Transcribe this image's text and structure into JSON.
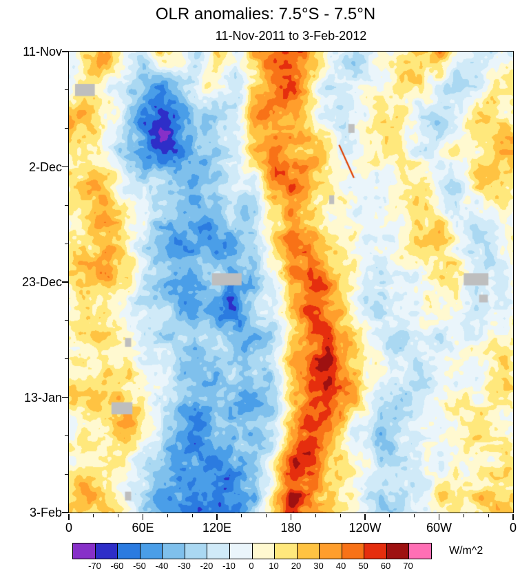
{
  "title": "OLR anomalies: 7.5°S - 7.5°N",
  "subtitle": "11-Nov-2011 to 3-Feb-2012",
  "colorbar": {
    "units": "W/m^2",
    "levels": [
      -70,
      -60,
      -50,
      -40,
      -30,
      -20,
      -10,
      0,
      10,
      20,
      30,
      40,
      50,
      60,
      70
    ],
    "colors": [
      "#8730C8",
      "#2E2EC8",
      "#2B7BE0",
      "#4A9EE8",
      "#7FC0EC",
      "#AAD8F2",
      "#D0EAF8",
      "#EAF5FB",
      "#FFF9D0",
      "#FFE87C",
      "#FFC342",
      "#FF9E2C",
      "#F87217",
      "#E52E0E",
      "#9E1111",
      "#FF6FB5"
    ]
  },
  "chart_data": {
    "type": "heatmap",
    "title": "OLR anomalies: 7.5°S - 7.5°N",
    "subtitle": "11-Nov-2011 to 3-Feb-2012",
    "xlabel": "",
    "ylabel": "",
    "value_units": "W/m^2",
    "lon_range": [
      0,
      360
    ],
    "day_range": [
      0,
      84
    ],
    "x_axis": {
      "ticks": [
        {
          "lon": 0,
          "label": "0"
        },
        {
          "lon": 60,
          "label": "60E"
        },
        {
          "lon": 120,
          "label": "120E"
        },
        {
          "lon": 180,
          "label": "180"
        },
        {
          "lon": 240,
          "label": "120W"
        },
        {
          "lon": 300,
          "label": "60W"
        },
        {
          "lon": 360,
          "label": "0"
        }
      ],
      "minor_lons": [
        20,
        40,
        80,
        100,
        140,
        160,
        200,
        220,
        260,
        280,
        320,
        340
      ]
    },
    "y_axis": {
      "ticks": [
        {
          "day": 0,
          "label": "11-Nov"
        },
        {
          "day": 21,
          "label": "2-Dec"
        },
        {
          "day": 42,
          "label": "23-Dec"
        },
        {
          "day": 63,
          "label": "13-Jan"
        },
        {
          "day": 84,
          "label": "3-Feb"
        }
      ],
      "minor_days": [
        7,
        14,
        28,
        35,
        49,
        56,
        70,
        77
      ]
    },
    "grid": {
      "lons": [
        0,
        15,
        30,
        45,
        60,
        75,
        90,
        105,
        120,
        135,
        150,
        165,
        180,
        195,
        210,
        225,
        240,
        255,
        270,
        285,
        300,
        315,
        330,
        345,
        360
      ],
      "days": [
        0,
        6,
        12,
        18,
        24,
        30,
        36,
        42,
        48,
        54,
        60,
        66,
        72,
        78,
        84
      ],
      "values": [
        [
          -8,
          12,
          28,
          8,
          -12,
          26,
          18,
          -8,
          14,
          -12,
          20,
          40,
          52,
          20,
          -6,
          -14,
          -18,
          -8,
          6,
          18,
          24,
          -18,
          -26,
          -10,
          -8
        ],
        [
          10,
          22,
          15,
          -10,
          -35,
          -52,
          -30,
          -15,
          12,
          -18,
          15,
          35,
          45,
          15,
          -10,
          -18,
          -10,
          4,
          12,
          8,
          -12,
          -22,
          -15,
          10,
          10
        ],
        [
          18,
          15,
          -5,
          -22,
          -50,
          -64,
          -42,
          -20,
          -25,
          -15,
          25,
          30,
          22,
          18,
          -5,
          -12,
          -6,
          8,
          15,
          -5,
          -18,
          -12,
          5,
          15,
          18
        ],
        [
          25,
          10,
          -10,
          -25,
          -40,
          -58,
          -52,
          -30,
          -35,
          -28,
          18,
          35,
          28,
          22,
          8,
          -8,
          4,
          10,
          5,
          -10,
          -8,
          6,
          12,
          20,
          25
        ],
        [
          20,
          25,
          15,
          -5,
          -20,
          -35,
          -48,
          -42,
          -30,
          -20,
          -25,
          25,
          35,
          18,
          5,
          -5,
          -10,
          -6,
          8,
          12,
          -6,
          -15,
          8,
          18,
          20
        ],
        [
          12,
          20,
          25,
          10,
          -10,
          -22,
          -30,
          -38,
          -42,
          -30,
          -15,
          20,
          40,
          30,
          12,
          -8,
          -15,
          -10,
          -5,
          8,
          15,
          -8,
          -12,
          6,
          12
        ],
        [
          8,
          15,
          28,
          20,
          -8,
          -30,
          -45,
          -35,
          -40,
          -38,
          -20,
          15,
          45,
          50,
          25,
          5,
          -12,
          -18,
          -8,
          5,
          10,
          -5,
          -15,
          -5,
          8
        ],
        [
          5,
          18,
          22,
          15,
          -15,
          -40,
          -55,
          -45,
          -30,
          -42,
          -35,
          -10,
          35,
          55,
          40,
          15,
          -10,
          -20,
          -12,
          -5,
          8,
          12,
          -8,
          -10,
          5
        ],
        [
          10,
          20,
          15,
          8,
          -10,
          -25,
          -38,
          -30,
          -35,
          -45,
          -30,
          -15,
          30,
          58,
          45,
          20,
          -5,
          -15,
          -18,
          -10,
          5,
          10,
          -5,
          8,
          10
        ],
        [
          15,
          12,
          18,
          12,
          -5,
          -18,
          -25,
          -35,
          -28,
          -35,
          -40,
          -20,
          20,
          48,
          52,
          25,
          5,
          -10,
          -20,
          -15,
          -8,
          6,
          10,
          12,
          15
        ],
        [
          12,
          18,
          25,
          18,
          5,
          -10,
          -30,
          -28,
          -40,
          -30,
          -35,
          -25,
          10,
          42,
          55,
          30,
          8,
          -8,
          -15,
          -22,
          -12,
          -15,
          -10,
          10,
          12
        ],
        [
          8,
          15,
          20,
          25,
          10,
          -15,
          -35,
          -45,
          -35,
          -42,
          -30,
          -18,
          25,
          55,
          48,
          22,
          -5,
          -18,
          -25,
          -15,
          -10,
          5,
          12,
          8,
          8
        ],
        [
          10,
          12,
          15,
          18,
          -5,
          -25,
          -45,
          -55,
          -48,
          -35,
          -40,
          -22,
          45,
          58,
          30,
          10,
          -10,
          -22,
          -18,
          -12,
          -5,
          8,
          15,
          12,
          10
        ],
        [
          12,
          18,
          10,
          8,
          -15,
          -35,
          -55,
          -48,
          -55,
          -45,
          -30,
          0,
          48,
          45,
          25,
          5,
          -15,
          -25,
          -20,
          -10,
          5,
          12,
          10,
          15,
          12
        ],
        [
          15,
          20,
          12,
          5,
          -20,
          -40,
          -48,
          -55,
          -45,
          -38,
          -25,
          10,
          45,
          38,
          18,
          0,
          -18,
          -20,
          -15,
          -8,
          8,
          15,
          12,
          18,
          15
        ]
      ]
    },
    "missing_color": "#BEBEBE",
    "missing_patches": [
      {
        "lon": 13,
        "day": 7,
        "lon_span": 16,
        "day_span": 2.2
      },
      {
        "lon": 128,
        "day": 41.5,
        "lon_span": 24,
        "day_span": 2.2
      },
      {
        "lon": 43,
        "day": 65,
        "lon_span": 17,
        "day_span": 2.2
      },
      {
        "lon": 330,
        "day": 41.5,
        "lon_span": 20,
        "day_span": 2.2
      },
      {
        "lon": 229,
        "day": 14,
        "lon_span": 5,
        "day_span": 1.6
      },
      {
        "lon": 213,
        "day": 27,
        "lon_span": 4,
        "day_span": 1.6
      },
      {
        "lon": 48,
        "day": 53,
        "lon_span": 5,
        "day_span": 1.6
      },
      {
        "lon": 48,
        "day": 81,
        "lon_span": 5,
        "day_span": 1.6
      },
      {
        "lon": 336,
        "day": 45,
        "lon_span": 7,
        "day_span": 1.4
      }
    ],
    "artifact_streaks": [
      {
        "lon1": 219,
        "day1": 17,
        "lon2": 231,
        "day2": 23,
        "color": "#E04000"
      }
    ]
  }
}
